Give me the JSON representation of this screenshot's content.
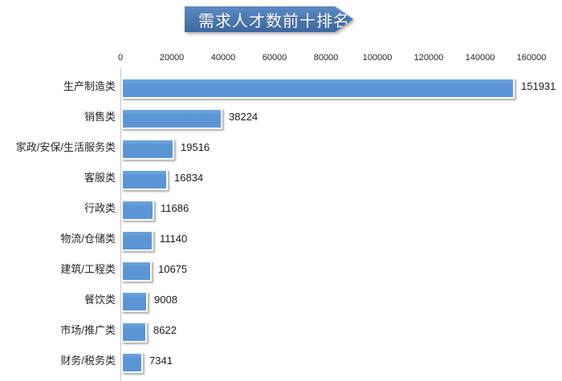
{
  "title_banner": {
    "label": "需求人才数前十排名",
    "gradient_top": "#5d89c2",
    "gradient_bottom": "#3c689f"
  },
  "chart_data": {
    "type": "bar",
    "orientation": "horizontal",
    "title": "需求人才数前十排名",
    "categories": [
      "生产制造类",
      "销售类",
      "家政/安保/生活服务类",
      "客服类",
      "行政类",
      "物流/仓储类",
      "建筑/工程类",
      "餐饮类",
      "市场/推广类",
      "财务/税务类"
    ],
    "values": [
      151931,
      38224,
      19516,
      16834,
      11686,
      11140,
      10675,
      9008,
      8622,
      7341
    ],
    "value_labels_shown": true,
    "xlabel": "",
    "ylabel": "",
    "xlim": [
      0,
      160000
    ],
    "tick_labels": [
      "0",
      "20000",
      "40000",
      "60000",
      "80000",
      "100000",
      "120000",
      "140000",
      "160000"
    ],
    "tick_step": 20000,
    "grid": false,
    "legend": false,
    "bar_color": "#5b95d5",
    "bar_color_light": "#6ea6dd",
    "axis_line_color": "#c6c6c6"
  }
}
